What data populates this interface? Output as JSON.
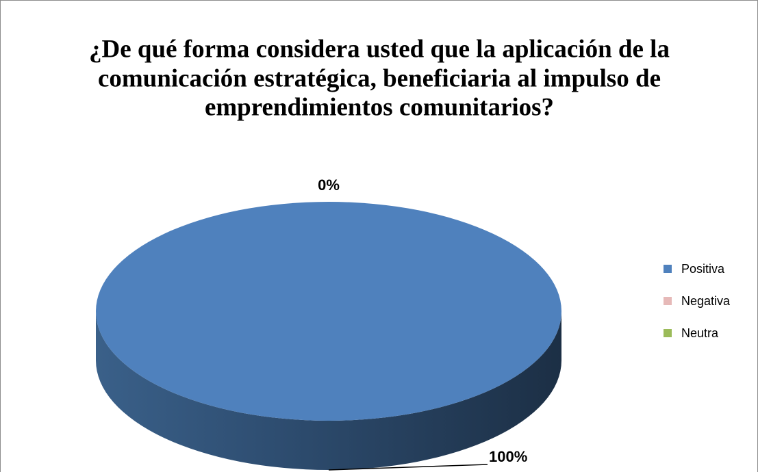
{
  "chart_data": {
    "type": "pie",
    "title": [
      "¿De qué forma considera usted que la aplicación de la",
      "comunicación estratégica, beneficiaria al impulso de",
      "emprendimientos comunitarios?"
    ],
    "categories": [
      "Positiva",
      "Negativa",
      "Neutra"
    ],
    "values": [
      100,
      0,
      0
    ],
    "value_labels": [
      "100%",
      "0%",
      null
    ],
    "colors": [
      "#4f81bd",
      "#e6b9b8",
      "#9bbb59"
    ],
    "legend": "right"
  }
}
